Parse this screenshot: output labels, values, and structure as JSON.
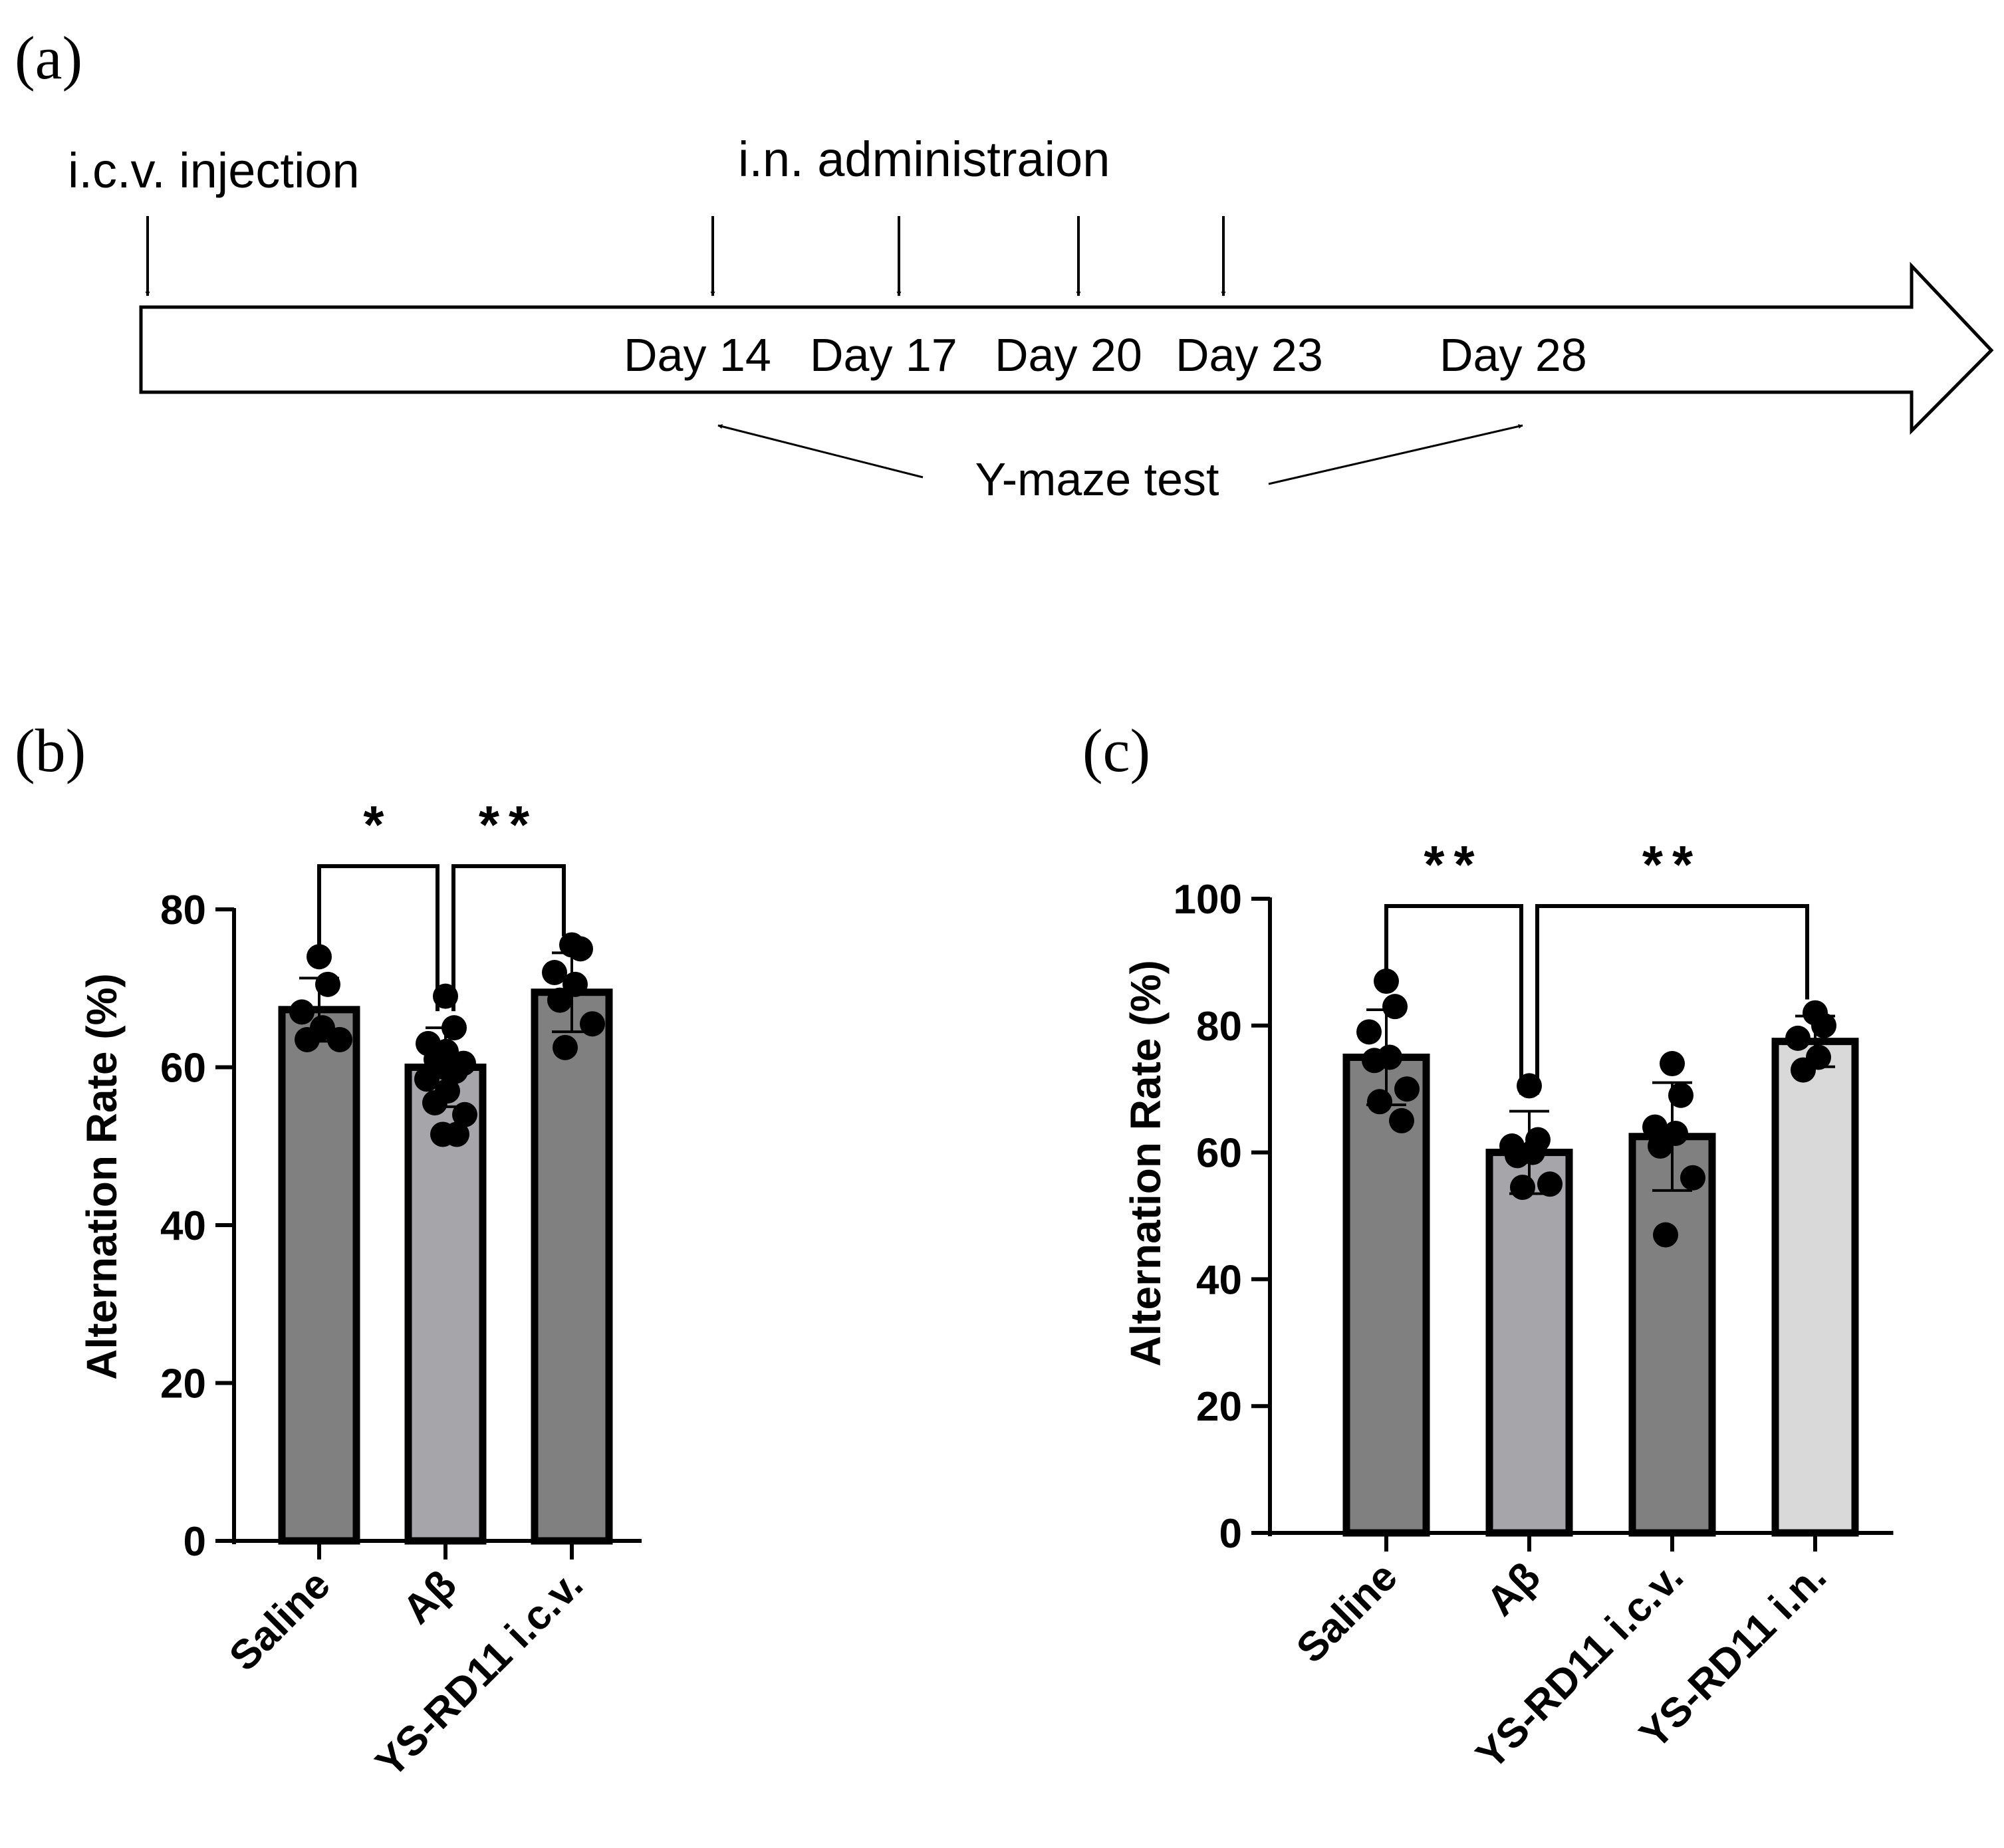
{
  "panel_labels": {
    "a": "(a)",
    "b": "(b)",
    "c": "(c)"
  },
  "timeline": {
    "icv_label": "i.c.v. injection",
    "in_label": "i.n. administraion",
    "days": [
      "Day 14",
      "Day 17",
      "Day 20",
      "Day 23",
      "Day 28"
    ],
    "test_label": "Y-maze test"
  },
  "colors": {
    "dark_bar": "#808080",
    "medium_bar": "#a6a6aa",
    "light_bar": "#d9d9d9",
    "ink": "#000000"
  },
  "chart_data": [
    {
      "id": "b",
      "type": "bar",
      "ylabel": "Alternation Rate (%)",
      "ylim": [
        0,
        80
      ],
      "yticks": [
        "0",
        "20",
        "40",
        "60",
        "80"
      ],
      "categories": [
        "Saline",
        "Aβ",
        "YS-RD11 i.c.v."
      ],
      "values": [
        67.3,
        60.0,
        69.5
      ],
      "errors": [
        4.0,
        5.0,
        5.0
      ],
      "points": [
        [
          74,
          70.5,
          67,
          65,
          63.5,
          63.5
        ],
        [
          69,
          65,
          63,
          62,
          61,
          60.5,
          60,
          59.5,
          58.5,
          57,
          55.5,
          54,
          51.5,
          51.5
        ],
        [
          75.5,
          75,
          72,
          70.5,
          68.5,
          65.5,
          62.5
        ]
      ],
      "comparisons": [
        {
          "from": 0,
          "to": 1,
          "label": "*"
        },
        {
          "from": 1,
          "to": 2,
          "label": "**"
        }
      ]
    },
    {
      "id": "c",
      "type": "bar",
      "ylabel": "Alternation Rate (%)",
      "ylim": [
        0,
        100
      ],
      "yticks": [
        "0",
        "20",
        "40",
        "60",
        "80",
        "100"
      ],
      "categories": [
        "Saline",
        "Aβ",
        "YS-RD11 i.c.v.",
        "YS-RD11 i.n."
      ],
      "values": [
        75.0,
        60.0,
        62.5,
        77.5
      ],
      "errors": [
        7.5,
        6.5,
        8.5,
        4.0
      ],
      "points": [
        [
          87,
          83,
          79,
          75,
          74.5,
          70,
          68,
          65
        ],
        [
          70.5,
          62,
          61,
          60,
          59.5,
          55,
          54.5
        ],
        [
          74,
          69,
          64,
          63,
          61,
          56,
          47
        ],
        [
          82,
          80,
          78,
          75,
          73
        ]
      ],
      "comparisons": [
        {
          "from": 0,
          "to": 1,
          "label": "**"
        },
        {
          "from": 1,
          "to": 3,
          "label": "**"
        }
      ]
    }
  ]
}
